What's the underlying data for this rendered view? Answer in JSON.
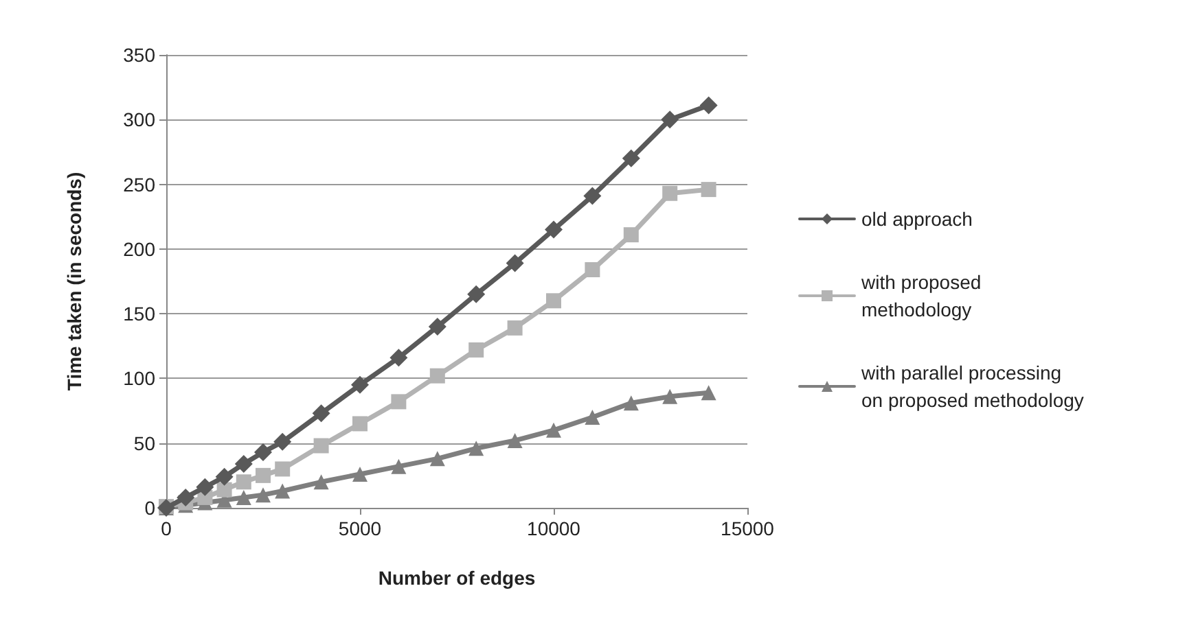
{
  "chart_data": {
    "type": "line",
    "xlabel": "Number of edges",
    "ylabel": "Time taken (in seconds)",
    "x": [
      0,
      500,
      1000,
      1500,
      2000,
      2500,
      3000,
      4000,
      5000,
      6000,
      7000,
      8000,
      9000,
      10000,
      11000,
      12000,
      13000,
      14000
    ],
    "series": [
      {
        "name": "old approach",
        "color": "#595959",
        "marker": "diamond",
        "values": [
          0,
          8,
          16,
          24,
          34,
          43,
          51,
          73,
          95,
          116,
          140,
          165,
          189,
          215,
          241,
          270,
          300,
          311
        ]
      },
      {
        "name": "with proposed methodology",
        "color": "#b3b3b3",
        "marker": "square",
        "values": [
          1,
          4,
          8,
          14,
          20,
          25,
          30,
          48,
          65,
          82,
          102,
          122,
          139,
          160,
          184,
          211,
          243,
          246
        ]
      },
      {
        "name": "with parallel processing on proposed methodology",
        "color": "#7f7f7f",
        "marker": "triangle",
        "values": [
          0,
          2,
          4,
          6,
          8,
          10,
          13,
          20,
          26,
          32,
          38,
          46,
          52,
          60,
          70,
          81,
          86,
          89
        ]
      }
    ],
    "xlim": [
      0,
      15000
    ],
    "xticks": [
      0,
      5000,
      10000,
      15000
    ],
    "ylim": [
      0,
      350
    ],
    "yticks": [
      0,
      50,
      100,
      150,
      200,
      250,
      300,
      350
    ],
    "grid": "y",
    "legend": "right"
  }
}
